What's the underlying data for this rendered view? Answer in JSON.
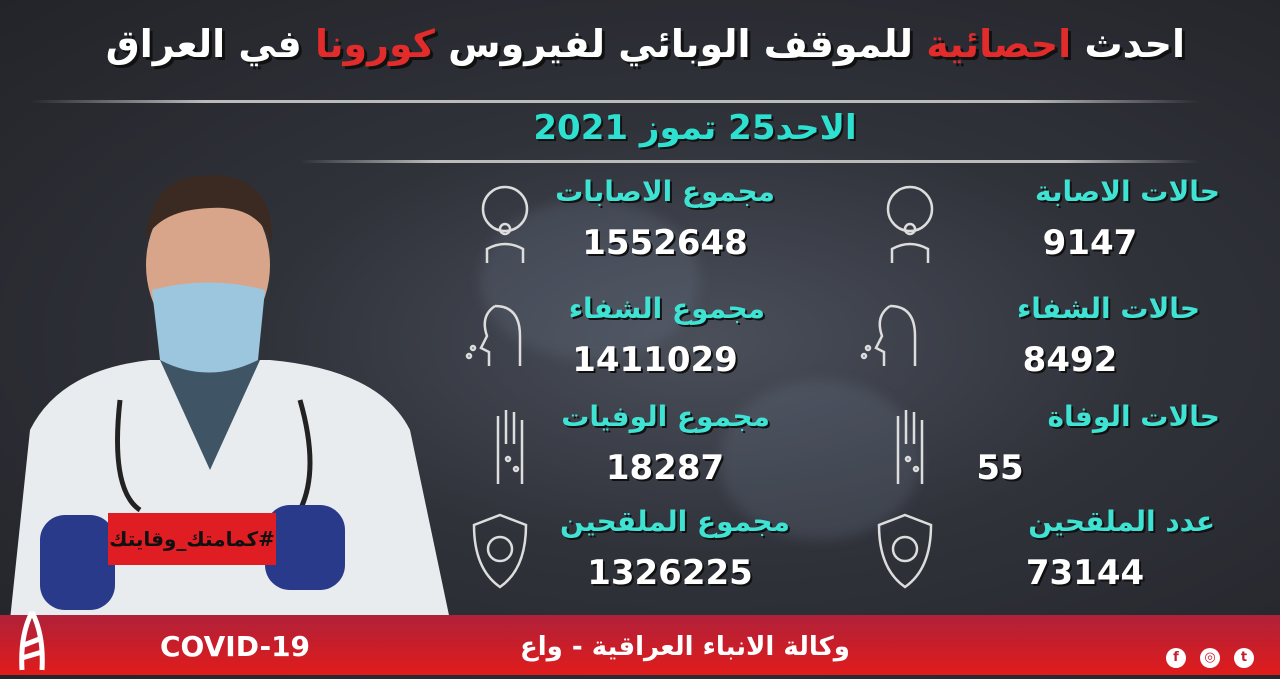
{
  "header": {
    "title_part1": "احدث",
    "title_red1": "احصائية",
    "title_part2": "للموقف الوبائي لفيروس",
    "title_red2": "كورونا",
    "title_part3": "في العراق",
    "date": "الاحد25 تموز 2021"
  },
  "stats_daily": [
    {
      "label": "حالات الاصابة",
      "value": "9147",
      "icon": "sick-face-icon"
    },
    {
      "label": "حالات الشفاء",
      "value": "8492",
      "icon": "breathing-face-icon"
    },
    {
      "label": "حالات الوفاة",
      "value": "55",
      "icon": "hand-icon"
    },
    {
      "label": "عدد الملقحين",
      "value": "73144",
      "icon": "virus-shield-icon"
    }
  ],
  "stats_total": [
    {
      "label": "مجموع الاصابات",
      "value": "1552648",
      "icon": "sick-face-icon"
    },
    {
      "label": "مجموع الشفاء",
      "value": "1411029",
      "icon": "breathing-face-icon"
    },
    {
      "label": "مجموع الوفيات",
      "value": "18287",
      "icon": "hand-icon"
    },
    {
      "label": "مجموع الملقحين",
      "value": "1326225",
      "icon": "virus-shield-icon"
    }
  ],
  "sign_text": "#كمامتك_وقايتك",
  "footer": {
    "agency": "وكالة الانباء العراقية - واع",
    "tag": "COVID-19",
    "social": [
      "f",
      "◎",
      "t"
    ]
  },
  "colors": {
    "accent_cyan": "#3fe3d3",
    "accent_red": "#e22b2b",
    "footer_red": "#c81e2a"
  }
}
